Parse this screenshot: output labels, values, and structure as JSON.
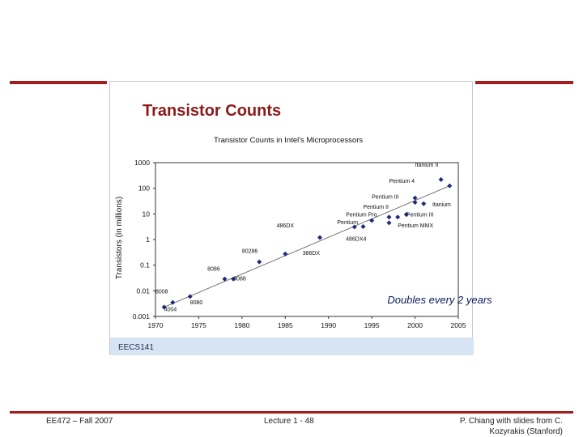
{
  "slide": {
    "image_title": "Transistor Counts",
    "footer_left": "EE472 – Fall 2007",
    "footer_center": "Lecture 1 - 48",
    "footer_right_line1": "P. Chiang with slides from C.",
    "footer_right_line2": "Kozyrakis (Stanford)",
    "image_tag": "EECS141"
  },
  "colors": {
    "rule": "#a51c1c",
    "title": "#8b1a1a",
    "marker": "#1f2a7a",
    "tag_band": "#d6e4f3"
  },
  "chart_data": {
    "type": "scatter",
    "title": "Transistor Counts in Intel's Microprocessors",
    "ylabel": "Transistors (in millions)",
    "xlabel": "",
    "yscale": "log",
    "xlim": [
      1970,
      2005
    ],
    "ylim": [
      0.001,
      1000
    ],
    "x_ticks": [
      "1970",
      "1975",
      "1980",
      "1985",
      "1990",
      "1995",
      "2000",
      "2005"
    ],
    "y_ticks": [
      "0.001",
      "0.01",
      "0.1",
      "1",
      "10",
      "100",
      "1000"
    ],
    "annotation": "Doubles every 2 years",
    "points": [
      {
        "label": "4004",
        "x": 1971,
        "y": 0.0023
      },
      {
        "label": "8008",
        "x": 1972,
        "y": 0.0035
      },
      {
        "label": "8080",
        "x": 1974,
        "y": 0.006
      },
      {
        "label": "8086",
        "x": 1978,
        "y": 0.029
      },
      {
        "label": "8088",
        "x": 1979,
        "y": 0.029
      },
      {
        "label": "80286",
        "x": 1982,
        "y": 0.134
      },
      {
        "label": "386DX",
        "x": 1985,
        "y": 0.275
      },
      {
        "label": "486DX",
        "x": 1989,
        "y": 1.2
      },
      {
        "label": "",
        "x": 1993,
        "y": 3.1
      },
      {
        "label": "Pentium",
        "x": 1994,
        "y": 3.2
      },
      {
        "label": "Pentium Pro",
        "x": 1995,
        "y": 5.5
      },
      {
        "label": "",
        "x": 1997,
        "y": 7.5
      },
      {
        "label": "Pentium MMX",
        "x": 1997,
        "y": 4.5
      },
      {
        "label": "Pentium II",
        "x": 1998,
        "y": 7.5
      },
      {
        "label": "",
        "x": 1999,
        "y": 9.5
      },
      {
        "label": "Pentium III",
        "x": 1999,
        "y": 9.5
      },
      {
        "label": "",
        "x": 2000,
        "y": 28
      },
      {
        "label": "Itanium",
        "x": 2001,
        "y": 25
      },
      {
        "label": "Pentium 4",
        "x": 2000,
        "y": 42
      },
      {
        "label": "Itanium II",
        "x": 2003,
        "y": 220
      },
      {
        "label": "",
        "x": 2004,
        "y": 125
      }
    ],
    "callouts": [
      {
        "text": "Itanium II",
        "x": 2000,
        "y": 700
      },
      {
        "text": "Pentium 4",
        "x": 1997,
        "y": 160
      },
      {
        "text": "Pentium III",
        "x": 1995,
        "y": 40
      },
      {
        "text": "Pentium II",
        "x": 1994,
        "y": 16
      },
      {
        "text": "Pentium Pro",
        "x": 1992,
        "y": 8
      },
      {
        "text": "Pentium",
        "x": 1991,
        "y": 4
      },
      {
        "text": "Itanium",
        "x": 2002,
        "y": 20
      },
      {
        "text": "Pentium III",
        "x": 1999,
        "y": 8
      },
      {
        "text": "Pentium MMX",
        "x": 1998,
        "y": 3
      },
      {
        "text": "486DX",
        "x": 1984,
        "y": 3
      },
      {
        "text": "486DX4",
        "x": 1992,
        "y": 0.9
      },
      {
        "text": "80286",
        "x": 1980,
        "y": 0.3
      },
      {
        "text": "386DX",
        "x": 1987,
        "y": 0.25
      },
      {
        "text": "8086",
        "x": 1976,
        "y": 0.06
      },
      {
        "text": "8088",
        "x": 1979,
        "y": 0.025
      },
      {
        "text": "8080",
        "x": 1974,
        "y": 0.003
      },
      {
        "text": "8008",
        "x": 1970,
        "y": 0.008
      },
      {
        "text": "4004",
        "x": 1971,
        "y": 0.0016
      }
    ]
  }
}
